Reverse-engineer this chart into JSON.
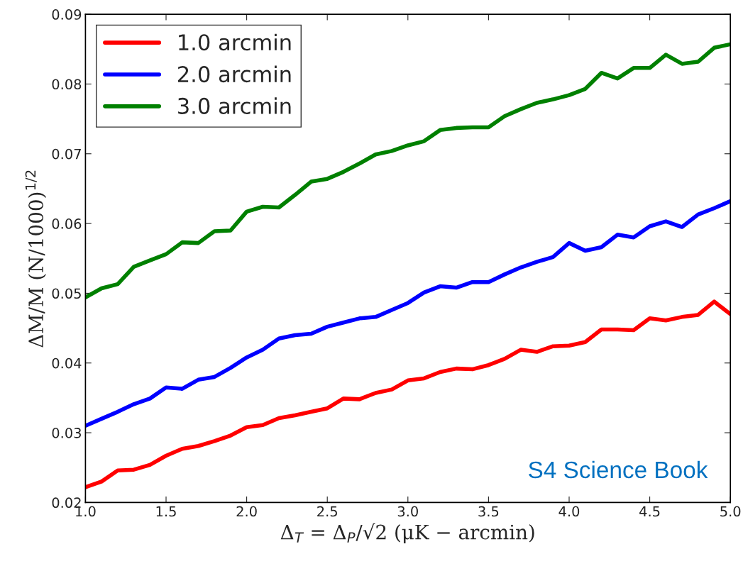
{
  "chart_data": {
    "type": "line",
    "xlabel": "Δ$_{T}$ = Δ$_{P}$/√2 (μK − arcmin)",
    "ylabel": "ΔM/M (N/1000)$^{1/2}$",
    "x": [
      1.0,
      1.1,
      1.2,
      1.3,
      1.4,
      1.5,
      1.6,
      1.7,
      1.8,
      1.9,
      2.0,
      2.1,
      2.2,
      2.3,
      2.4,
      2.5,
      2.6,
      2.7,
      2.8,
      2.9,
      3.0,
      3.1,
      3.2,
      3.3,
      3.4,
      3.5,
      3.6,
      3.7,
      3.8,
      3.9,
      4.0,
      4.1,
      4.2,
      4.3,
      4.4,
      4.5,
      4.6,
      4.7,
      4.8,
      4.9,
      5.0
    ],
    "series": [
      {
        "name": "1.0 arcmin",
        "color": "#ff0000",
        "values": [
          0.0222,
          0.023,
          0.0246,
          0.0247,
          0.0254,
          0.0267,
          0.0277,
          0.0281,
          0.0288,
          0.0296,
          0.0308,
          0.0311,
          0.0321,
          0.0325,
          0.033,
          0.0335,
          0.0349,
          0.0348,
          0.0357,
          0.0362,
          0.0375,
          0.0378,
          0.0387,
          0.0392,
          0.0391,
          0.0397,
          0.0406,
          0.0419,
          0.0416,
          0.0424,
          0.0425,
          0.043,
          0.0448,
          0.0448,
          0.0447,
          0.0464,
          0.0461,
          0.0466,
          0.0469,
          0.0488,
          0.047
        ]
      },
      {
        "name": "2.0 arcmin",
        "color": "#0000ff",
        "values": [
          0.031,
          0.032,
          0.033,
          0.0341,
          0.0349,
          0.0365,
          0.0363,
          0.0376,
          0.038,
          0.0393,
          0.0408,
          0.0419,
          0.0435,
          0.044,
          0.0442,
          0.0452,
          0.0458,
          0.0464,
          0.0466,
          0.0476,
          0.0486,
          0.0501,
          0.051,
          0.0508,
          0.0516,
          0.0516,
          0.0527,
          0.0537,
          0.0545,
          0.0552,
          0.0572,
          0.0561,
          0.0566,
          0.0584,
          0.058,
          0.0596,
          0.0603,
          0.0595,
          0.0613,
          0.0622,
          0.0632
        ]
      },
      {
        "name": "3.0 arcmin",
        "color": "#008000",
        "values": [
          0.0494,
          0.0507,
          0.0513,
          0.0538,
          0.0547,
          0.0556,
          0.0573,
          0.0572,
          0.0589,
          0.059,
          0.0617,
          0.0624,
          0.0623,
          0.0641,
          0.066,
          0.0664,
          0.0674,
          0.0686,
          0.0699,
          0.0704,
          0.0712,
          0.0718,
          0.0734,
          0.0737,
          0.0738,
          0.0738,
          0.0754,
          0.0764,
          0.0773,
          0.0778,
          0.0784,
          0.0793,
          0.0816,
          0.0808,
          0.0823,
          0.0823,
          0.0842,
          0.0829,
          0.0832,
          0.0852,
          0.0857
        ]
      }
    ],
    "xlim": [
      1.0,
      5.0
    ],
    "xticks": [
      {
        "value": 1.0,
        "label": "1.0"
      },
      {
        "value": 1.5,
        "label": "1.5"
      },
      {
        "value": 2.0,
        "label": "2.0"
      },
      {
        "value": 2.5,
        "label": "2.5"
      },
      {
        "value": 3.0,
        "label": "3.0"
      },
      {
        "value": 3.5,
        "label": "3.5"
      },
      {
        "value": 4.0,
        "label": "4.0"
      },
      {
        "value": 4.5,
        "label": "4.5"
      },
      {
        "value": 5.0,
        "label": "5.0"
      }
    ],
    "ylim": [
      0.02,
      0.09
    ],
    "yticks": [
      0.02,
      0.03,
      0.04,
      0.05,
      0.06,
      0.07,
      0.08,
      0.09
    ],
    "annotations": [
      "S4 Science Book"
    ],
    "legend": "top left",
    "grid": false,
    "line_style": "solid",
    "marker": "none"
  }
}
